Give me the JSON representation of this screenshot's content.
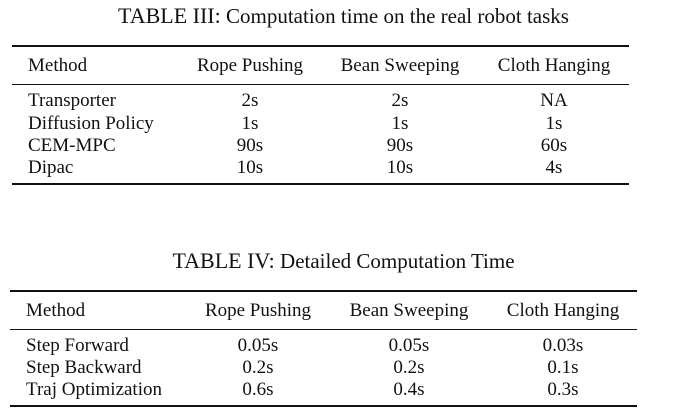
{
  "tables": [
    {
      "label": "TABLE III:",
      "caption": "Computation time on the real robot tasks",
      "columns": [
        "Method",
        "Rope Pushing",
        "Bean Sweeping",
        "Cloth Hanging"
      ],
      "rows": [
        [
          "Transporter",
          "2s",
          "2s",
          "NA"
        ],
        [
          "Diffusion Policy",
          "1s",
          "1s",
          "1s"
        ],
        [
          "CEM-MPC",
          "90s",
          "90s",
          "60s"
        ],
        [
          "Dipac",
          "10s",
          "10s",
          "4s"
        ]
      ]
    },
    {
      "label": "TABLE IV:",
      "caption": "Detailed Computation Time",
      "columns": [
        "Method",
        "Rope Pushing",
        "Bean Sweeping",
        "Cloth Hanging"
      ],
      "rows": [
        [
          "Step Forward",
          "0.05s",
          "0.05s",
          "0.03s"
        ],
        [
          "Step Backward",
          "0.2s",
          "0.2s",
          "0.1s"
        ],
        [
          "Traj Optimization",
          "0.6s",
          "0.4s",
          "0.3s"
        ]
      ]
    }
  ]
}
